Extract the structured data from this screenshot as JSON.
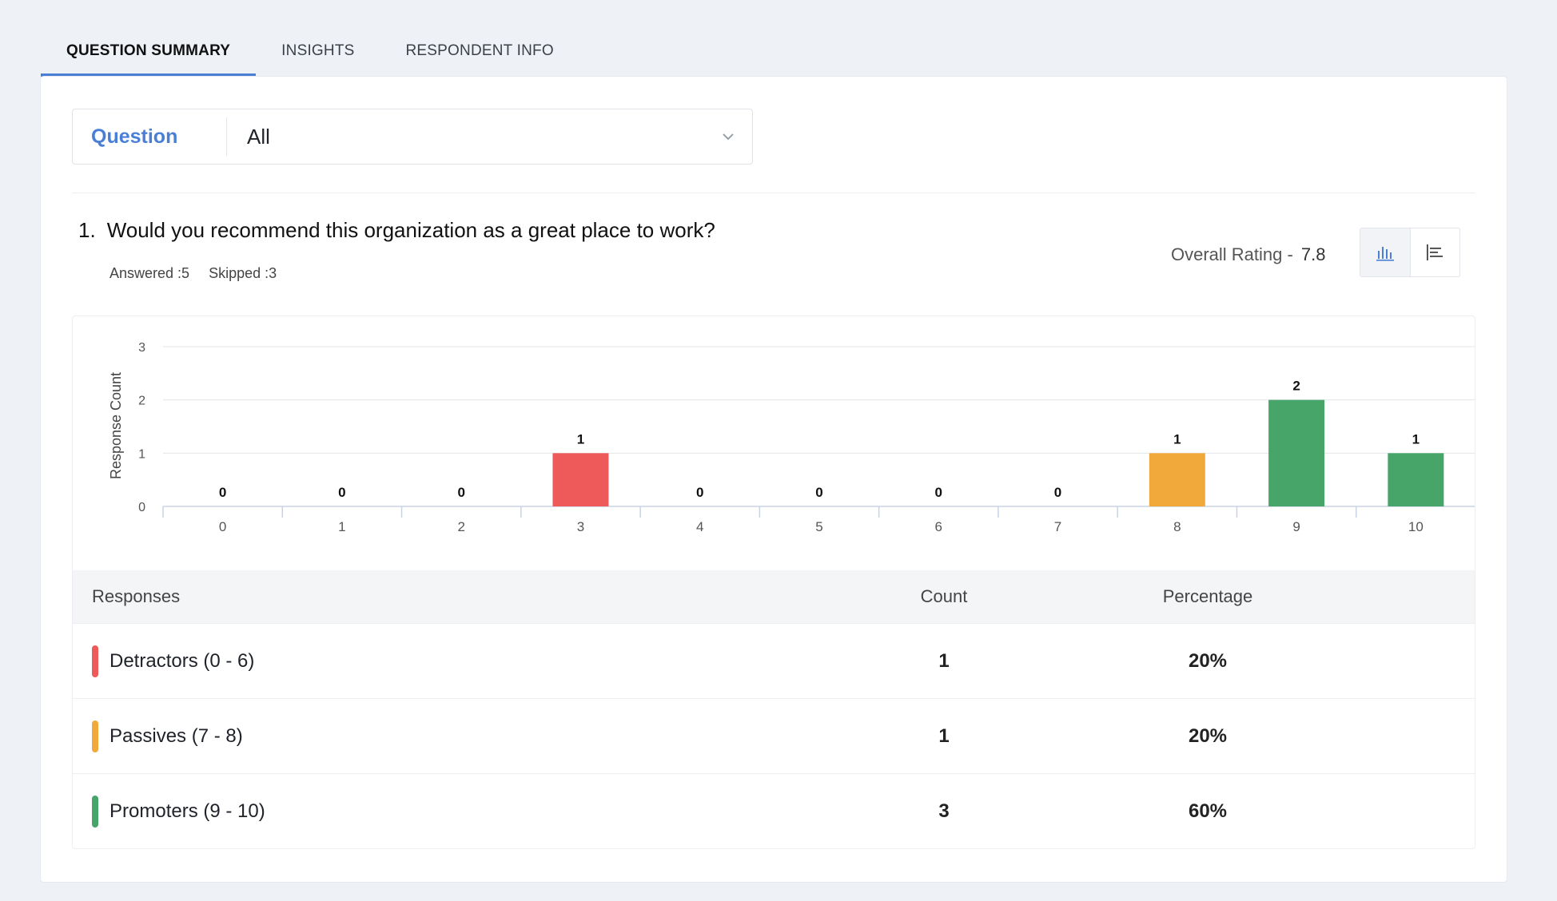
{
  "tabs": [
    {
      "label": "QUESTION SUMMARY",
      "active": true
    },
    {
      "label": "INSIGHTS",
      "active": false
    },
    {
      "label": "RESPONDENT INFO",
      "active": false
    }
  ],
  "filter": {
    "label": "Question",
    "value": "All"
  },
  "question": {
    "number": "1.",
    "text": "Would you recommend this organization as a great place to work?",
    "answered": "Answered :5",
    "skipped": "Skipped :3"
  },
  "rating": {
    "label": "Overall Rating -",
    "value": "7.8"
  },
  "view_toggle": {
    "active": "bar-chart-icon",
    "other": "list-chart-icon"
  },
  "chart_data": {
    "type": "bar",
    "categories": [
      "0",
      "1",
      "2",
      "3",
      "4",
      "5",
      "6",
      "7",
      "8",
      "9",
      "10"
    ],
    "values": [
      0,
      0,
      0,
      1,
      0,
      0,
      0,
      0,
      1,
      2,
      1
    ],
    "colors": [
      "#ee5a5a",
      "#ee5a5a",
      "#ee5a5a",
      "#ee5a5a",
      "#ee5a5a",
      "#ee5a5a",
      "#ee5a5a",
      "#f2a93b",
      "#f2a93b",
      "#48a56a",
      "#48a56a"
    ],
    "ylabel": "Response Count",
    "xlabel": "",
    "ylim": [
      0,
      3
    ],
    "yticks": [
      "0",
      "1",
      "2",
      "3"
    ],
    "grid": true
  },
  "table": {
    "headers": {
      "responses": "Responses",
      "count": "Count",
      "percentage": "Percentage"
    },
    "rows": [
      {
        "label": "Detractors (0 - 6)",
        "count": "1",
        "percentage": "20%",
        "color": "#ee5a5a"
      },
      {
        "label": "Passives (7 - 8)",
        "count": "1",
        "percentage": "20%",
        "color": "#f2a93b"
      },
      {
        "label": "Promoters (9 - 10)",
        "count": "3",
        "percentage": "60%",
        "color": "#48a56a"
      }
    ]
  }
}
